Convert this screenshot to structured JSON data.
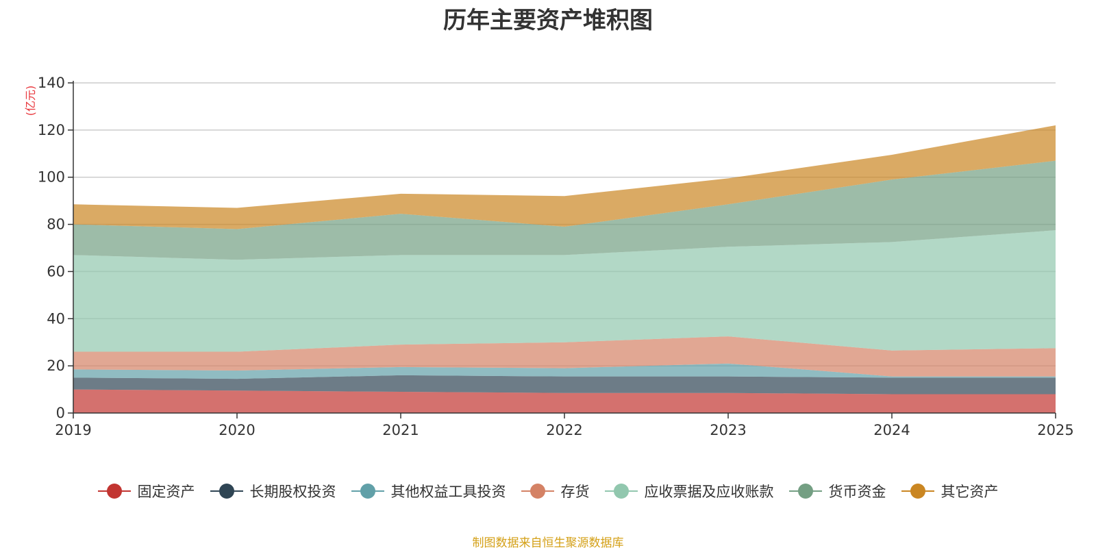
{
  "chart_data": {
    "type": "area",
    "stacked": true,
    "title": "历年主要资产堆积图",
    "ylabel": "(亿元)",
    "xlabel": "",
    "ylim": [
      0,
      140
    ],
    "yticks": [
      0,
      20,
      40,
      60,
      80,
      100,
      120,
      140
    ],
    "x": [
      "2019",
      "2020",
      "2021",
      "2022",
      "2023",
      "2024",
      "2025"
    ],
    "grid": true,
    "legend_position": "bottom",
    "series": [
      {
        "name": "固定资产",
        "color": "#c23531",
        "values": [
          10.0,
          9.5,
          9.0,
          8.5,
          8.5,
          8.0,
          8.0
        ]
      },
      {
        "name": "长期股权投资",
        "color": "#2f4554",
        "values": [
          5.0,
          5.0,
          7.0,
          7.0,
          7.0,
          7.0,
          7.0
        ]
      },
      {
        "name": "其他权益工具投资",
        "color": "#61a0a8",
        "values": [
          3.5,
          3.5,
          3.5,
          3.5,
          5.5,
          0.5,
          0.5
        ]
      },
      {
        "name": "存货",
        "color": "#d48265",
        "values": [
          7.5,
          8.0,
          9.5,
          11.0,
          11.5,
          11.0,
          12.0
        ]
      },
      {
        "name": "应收票据及应收账款",
        "color": "#91c7ae",
        "values": [
          41.0,
          39.0,
          38.0,
          37.0,
          38.0,
          46.0,
          50.0
        ]
      },
      {
        "name": "货币资金",
        "color": "#749f83",
        "values": [
          13.0,
          13.0,
          17.5,
          12.0,
          18.0,
          26.5,
          29.5
        ]
      },
      {
        "name": "其它资产",
        "color": "#ca8622",
        "values": [
          8.5,
          9.0,
          8.5,
          13.0,
          11.0,
          10.5,
          15.0
        ]
      }
    ]
  },
  "source_note": "制图数据来自恒生聚源数据库"
}
